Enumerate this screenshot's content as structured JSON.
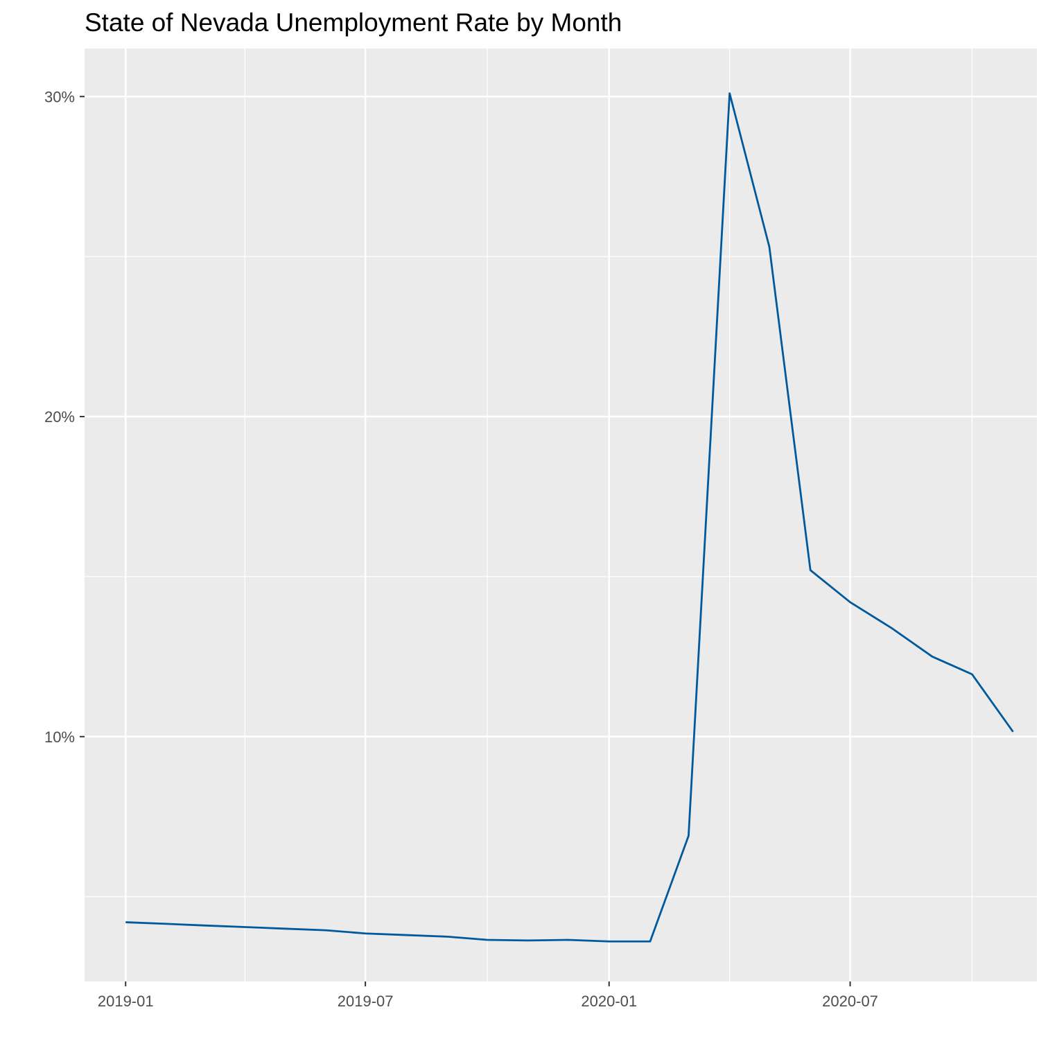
{
  "chart_data": {
    "type": "line",
    "title": "State of Nevada Unemployment Rate by Month",
    "xlabel": "",
    "ylabel": "",
    "x_ticks": [
      "2019-01",
      "2019-07",
      "2020-01",
      "2020-07"
    ],
    "y_ticks": [
      {
        "value": 10,
        "label": "10%"
      },
      {
        "value": 20,
        "label": "20%"
      },
      {
        "value": 30,
        "label": "30%"
      }
    ],
    "xlim": [
      "2018-12-01",
      "2020-11-19"
    ],
    "ylim": [
      2.35,
      31.5
    ],
    "grid": true,
    "series": [
      {
        "color": "#00599c",
        "points": [
          {
            "x": "2019-01-01",
            "y": 4.2
          },
          {
            "x": "2019-02-01",
            "y": 4.15
          },
          {
            "x": "2019-03-01",
            "y": 4.1
          },
          {
            "x": "2019-04-01",
            "y": 4.05
          },
          {
            "x": "2019-05-01",
            "y": 4.0
          },
          {
            "x": "2019-06-01",
            "y": 3.95
          },
          {
            "x": "2019-07-01",
            "y": 3.85
          },
          {
            "x": "2019-08-01",
            "y": 3.8
          },
          {
            "x": "2019-09-01",
            "y": 3.75
          },
          {
            "x": "2019-10-01",
            "y": 3.65
          },
          {
            "x": "2019-11-01",
            "y": 3.63
          },
          {
            "x": "2019-12-01",
            "y": 3.65
          },
          {
            "x": "2020-01-01",
            "y": 3.6
          },
          {
            "x": "2020-02-01",
            "y": 3.6
          },
          {
            "x": "2020-03-01",
            "y": 6.9
          },
          {
            "x": "2020-04-01",
            "y": 30.1
          },
          {
            "x": "2020-05-01",
            "y": 25.3
          },
          {
            "x": "2020-06-01",
            "y": 15.2
          },
          {
            "x": "2020-07-01",
            "y": 14.2
          },
          {
            "x": "2020-08-01",
            "y": 13.4
          },
          {
            "x": "2020-09-01",
            "y": 12.5
          },
          {
            "x": "2020-10-01",
            "y": 11.95
          },
          {
            "x": "2020-11-01",
            "y": 10.15
          }
        ]
      }
    ]
  }
}
